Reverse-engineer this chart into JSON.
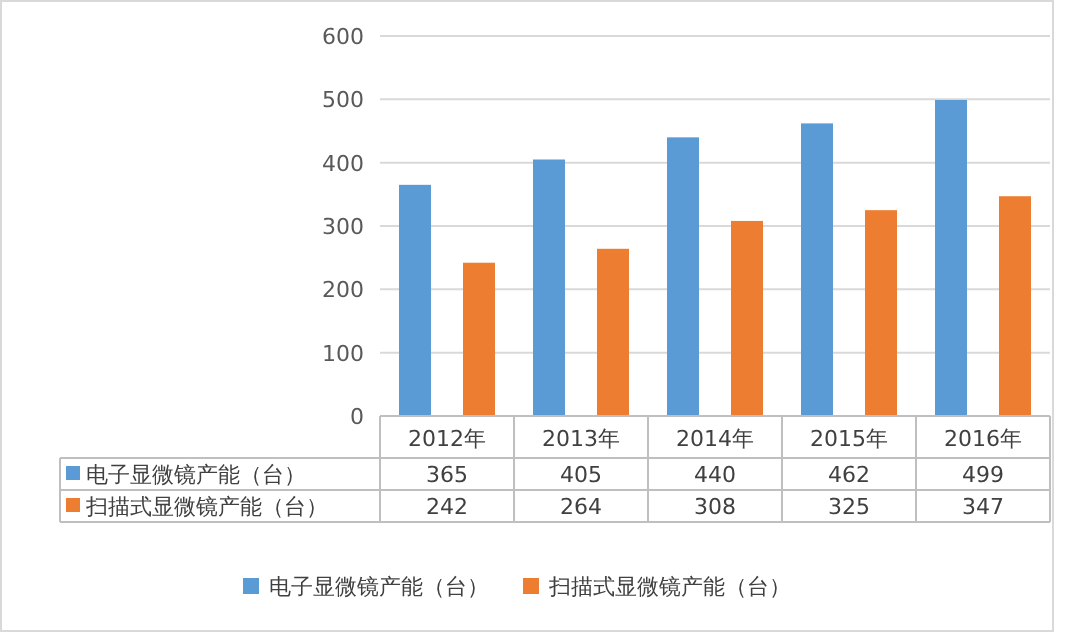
{
  "chart_data": {
    "type": "bar",
    "categories": [
      "2012年",
      "2013年",
      "2014年",
      "2015年",
      "2016年"
    ],
    "series": [
      {
        "name": "电子显微镜产能（台）",
        "color": "#5b9bd5",
        "values": [
          365,
          405,
          440,
          462,
          499
        ]
      },
      {
        "name": "扫描式显微镜产能（台）",
        "color": "#ed7d31",
        "values": [
          242,
          264,
          308,
          325,
          347
        ]
      }
    ],
    "ylim": [
      0,
      600
    ],
    "yticks": [
      0,
      100,
      200,
      300,
      400,
      500,
      600
    ],
    "grid": "y",
    "data_labels": true,
    "legend": "bottom"
  }
}
